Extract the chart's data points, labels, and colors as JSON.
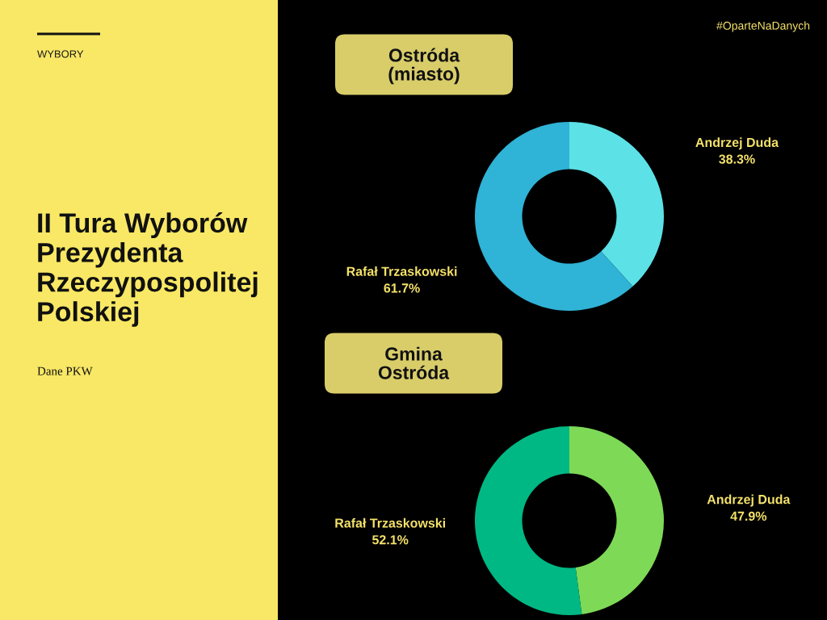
{
  "chart_data": [
    {
      "type": "other",
      "subtitle": "WYBORY",
      "title": "II Tura Wyborów\nPrezydenta\nRzeczypospolitej\nPolskiej",
      "annotations": [
        "Dane PKW",
        "#OparteNaDanych"
      ]
    },
    {
      "type": "donut",
      "title": "Ostróda\n(miasto)",
      "categories": [
        "Andrzej Duda",
        "Rafał Trzaskowski"
      ],
      "values": [
        38.3,
        61.7
      ],
      "colors": [
        "#5ce1e6",
        "#2fb3d6"
      ],
      "value_labels": [
        "38.3%",
        "61.7%"
      ]
    },
    {
      "type": "donut",
      "title": "Gmina\nOstróda",
      "categories": [
        "Andrzej Duda",
        "Rafał Trzaskowski"
      ],
      "values": [
        47.9,
        52.1
      ],
      "colors": [
        "#7ed957",
        "#00b884"
      ],
      "value_labels": [
        "47.9%",
        "52.1%"
      ]
    }
  ]
}
